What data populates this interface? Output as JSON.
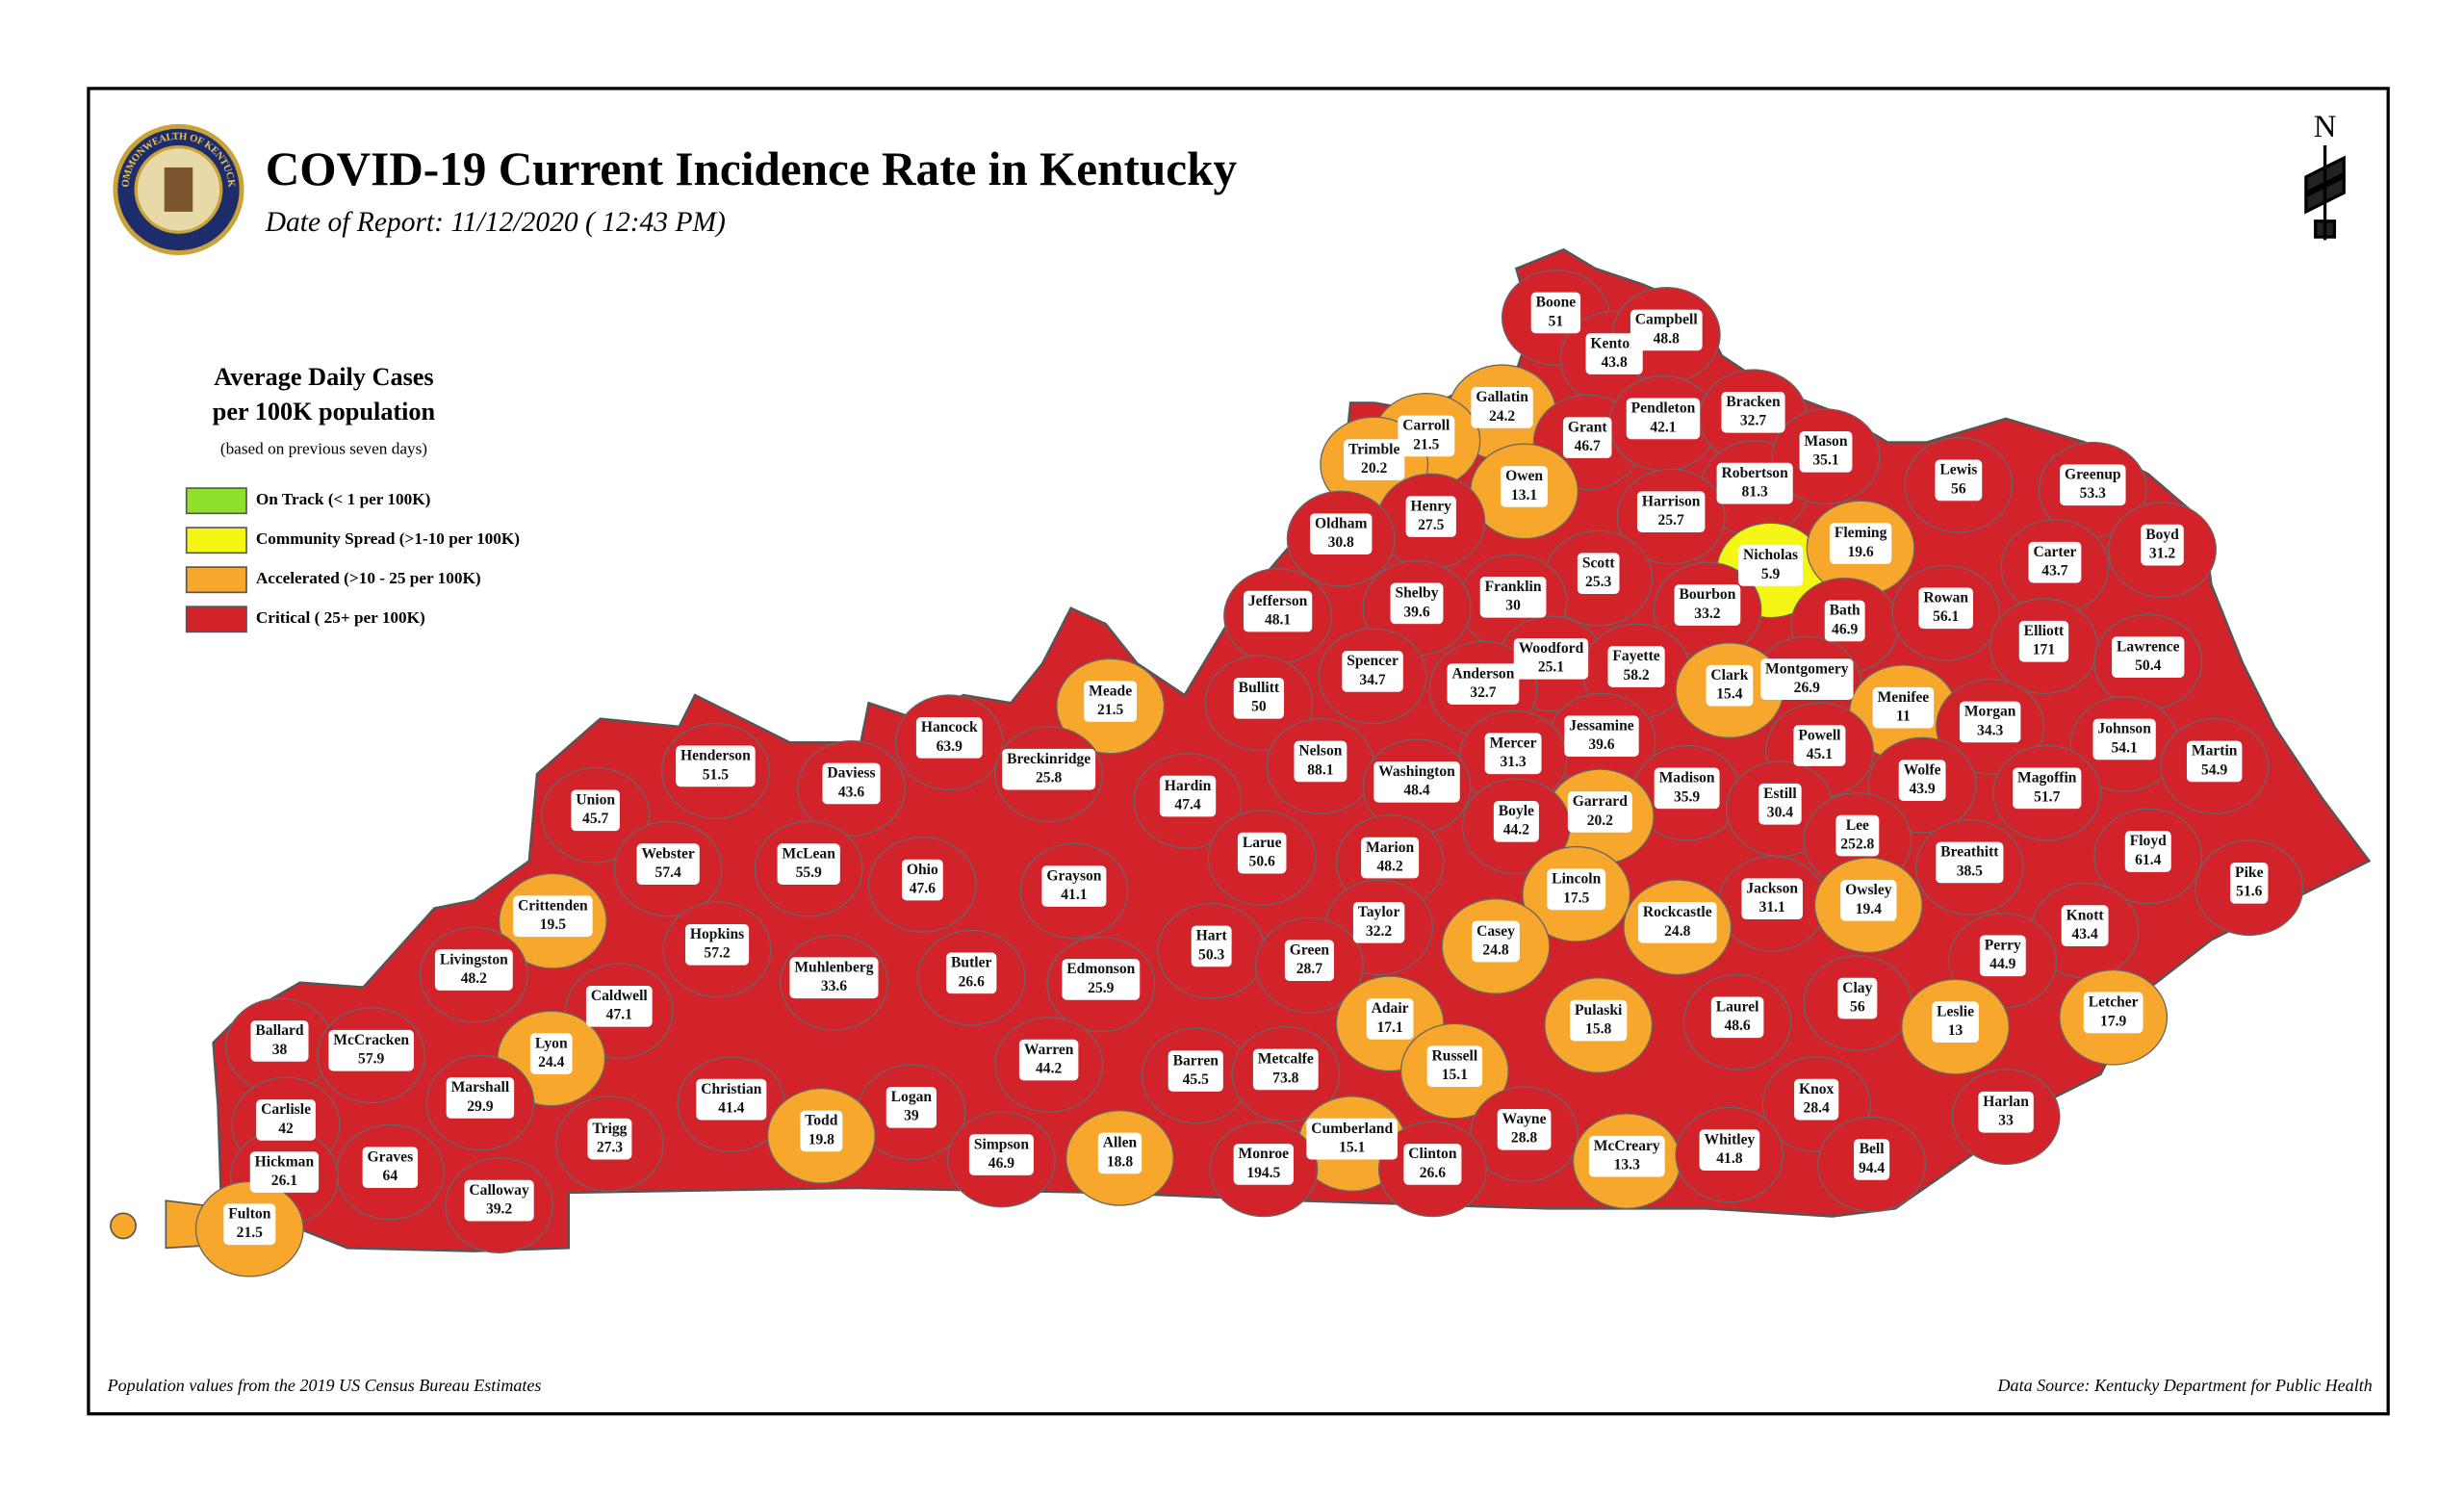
{
  "header": {
    "title": "COVID-19 Current Incidence Rate in Kentucky",
    "subtitle": "Date of Report: 11/12/2020 ( 12:43 PM)",
    "seal_text": "COMMONWEALTH OF KENTUCKY",
    "north": "N"
  },
  "legend": {
    "title": [
      "Average Daily Cases",
      "per 100K population"
    ],
    "note": "(based on previous seven days)",
    "items": [
      {
        "label": "On Track (< 1 per 100K)",
        "color": "#8ee02a"
      },
      {
        "label": "Community Spread (>1-10 per 100K)",
        "color": "#f6f614"
      },
      {
        "label": "Accelerated (>10 - 25 per 100K)",
        "color": "#f7a72b"
      },
      {
        "label": "Critical ( 25+ per 100K)",
        "color": "#d2232a"
      }
    ]
  },
  "counties": [
    {
      "name": "Boone",
      "value": 51,
      "color": "#d2232a"
    },
    {
      "name": "Kenton",
      "value": 43.8,
      "color": "#d2232a"
    },
    {
      "name": "Campbell",
      "value": 48.8,
      "color": "#d2232a"
    },
    {
      "name": "Gallatin",
      "value": 24.2,
      "color": "#f7a72b"
    },
    {
      "name": "Carroll",
      "value": 21.5,
      "color": "#f7a72b"
    },
    {
      "name": "Trimble",
      "value": 20.2,
      "color": "#f7a72b"
    },
    {
      "name": "Grant",
      "value": 46.7,
      "color": "#d2232a"
    },
    {
      "name": "Pendleton",
      "value": 42.1,
      "color": "#d2232a"
    },
    {
      "name": "Bracken",
      "value": 32.7,
      "color": "#d2232a"
    },
    {
      "name": "Owen",
      "value": 13.1,
      "color": "#f7a72b"
    },
    {
      "name": "Robertson",
      "value": 81.3,
      "color": "#d2232a"
    },
    {
      "name": "Mason",
      "value": 35.1,
      "color": "#d2232a"
    },
    {
      "name": "Lewis",
      "value": 56,
      "color": "#d2232a"
    },
    {
      "name": "Greenup",
      "value": 53.3,
      "color": "#d2232a"
    },
    {
      "name": "Henry",
      "value": 27.5,
      "color": "#d2232a"
    },
    {
      "name": "Oldham",
      "value": 30.8,
      "color": "#d2232a"
    },
    {
      "name": "Harrison",
      "value": 25.7,
      "color": "#d2232a"
    },
    {
      "name": "Nicholas",
      "value": 5.9,
      "color": "#f6f614"
    },
    {
      "name": "Fleming",
      "value": 19.6,
      "color": "#f7a72b"
    },
    {
      "name": "Boyd",
      "value": 31.2,
      "color": "#d2232a"
    },
    {
      "name": "Carter",
      "value": 43.7,
      "color": "#d2232a"
    },
    {
      "name": "Scott",
      "value": 25.3,
      "color": "#d2232a"
    },
    {
      "name": "Franklin",
      "value": 30,
      "color": "#d2232a"
    },
    {
      "name": "Shelby",
      "value": 39.6,
      "color": "#d2232a"
    },
    {
      "name": "Jefferson",
      "value": 48.1,
      "color": "#d2232a"
    },
    {
      "name": "Bourbon",
      "value": 33.2,
      "color": "#d2232a"
    },
    {
      "name": "Bath",
      "value": 46.9,
      "color": "#d2232a"
    },
    {
      "name": "Rowan",
      "value": 56.1,
      "color": "#d2232a"
    },
    {
      "name": "Elliott",
      "value": 171,
      "color": "#d2232a"
    },
    {
      "name": "Lawrence",
      "value": 50.4,
      "color": "#d2232a"
    },
    {
      "name": "Woodford",
      "value": 25.1,
      "color": "#d2232a"
    },
    {
      "name": "Fayette",
      "value": 58.2,
      "color": "#d2232a"
    },
    {
      "name": "Spencer",
      "value": 34.7,
      "color": "#d2232a"
    },
    {
      "name": "Anderson",
      "value": 32.7,
      "color": "#d2232a"
    },
    {
      "name": "Montgomery",
      "value": 26.9,
      "color": "#d2232a"
    },
    {
      "name": "Clark",
      "value": 15.4,
      "color": "#f7a72b"
    },
    {
      "name": "Menifee",
      "value": 11,
      "color": "#f7a72b"
    },
    {
      "name": "Bullitt",
      "value": 50,
      "color": "#d2232a"
    },
    {
      "name": "Meade",
      "value": 21.5,
      "color": "#f7a72b"
    },
    {
      "name": "Morgan",
      "value": 34.3,
      "color": "#d2232a"
    },
    {
      "name": "Johnson",
      "value": 54.1,
      "color": "#d2232a"
    },
    {
      "name": "Martin",
      "value": 54.9,
      "color": "#d2232a"
    },
    {
      "name": "Hancock",
      "value": 63.9,
      "color": "#d2232a"
    },
    {
      "name": "Jessamine",
      "value": 39.6,
      "color": "#d2232a"
    },
    {
      "name": "Mercer",
      "value": 31.3,
      "color": "#d2232a"
    },
    {
      "name": "Powell",
      "value": 45.1,
      "color": "#d2232a"
    },
    {
      "name": "Nelson",
      "value": 88.1,
      "color": "#d2232a"
    },
    {
      "name": "Henderson",
      "value": 51.5,
      "color": "#d2232a"
    },
    {
      "name": "Breckinridge",
      "value": 25.8,
      "color": "#d2232a"
    },
    {
      "name": "Washington",
      "value": 48.4,
      "color": "#d2232a"
    },
    {
      "name": "Madison",
      "value": 35.9,
      "color": "#d2232a"
    },
    {
      "name": "Wolfe",
      "value": 43.9,
      "color": "#d2232a"
    },
    {
      "name": "Magoffin",
      "value": 51.7,
      "color": "#d2232a"
    },
    {
      "name": "Daviess",
      "value": 43.6,
      "color": "#d2232a"
    },
    {
      "name": "Hardin",
      "value": 47.4,
      "color": "#d2232a"
    },
    {
      "name": "Estill",
      "value": 30.4,
      "color": "#d2232a"
    },
    {
      "name": "Garrard",
      "value": 20.2,
      "color": "#f7a72b"
    },
    {
      "name": "Union",
      "value": 45.7,
      "color": "#d2232a"
    },
    {
      "name": "Boyle",
      "value": 44.2,
      "color": "#d2232a"
    },
    {
      "name": "Lee",
      "value": 252.8,
      "color": "#d2232a"
    },
    {
      "name": "Floyd",
      "value": 61.4,
      "color": "#d2232a"
    },
    {
      "name": "Breathitt",
      "value": 38.5,
      "color": "#d2232a"
    },
    {
      "name": "Webster",
      "value": 57.4,
      "color": "#d2232a"
    },
    {
      "name": "McLean",
      "value": 55.9,
      "color": "#d2232a"
    },
    {
      "name": "Ohio",
      "value": 47.6,
      "color": "#d2232a"
    },
    {
      "name": "Marion",
      "value": 48.2,
      "color": "#d2232a"
    },
    {
      "name": "Larue",
      "value": 50.6,
      "color": "#d2232a"
    },
    {
      "name": "Grayson",
      "value": 41.1,
      "color": "#d2232a"
    },
    {
      "name": "Lincoln",
      "value": 17.5,
      "color": "#f7a72b"
    },
    {
      "name": "Jackson",
      "value": 31.1,
      "color": "#d2232a"
    },
    {
      "name": "Owsley",
      "value": 19.4,
      "color": "#f7a72b"
    },
    {
      "name": "Pike",
      "value": 51.6,
      "color": "#d2232a"
    },
    {
      "name": "Crittenden",
      "value": 19.5,
      "color": "#f7a72b"
    },
    {
      "name": "Taylor",
      "value": 32.2,
      "color": "#d2232a"
    },
    {
      "name": "Rockcastle",
      "value": 24.8,
      "color": "#f7a72b"
    },
    {
      "name": "Casey",
      "value": 24.8,
      "color": "#f7a72b"
    },
    {
      "name": "Knott",
      "value": 43.4,
      "color": "#d2232a"
    },
    {
      "name": "Hopkins",
      "value": 57.2,
      "color": "#d2232a"
    },
    {
      "name": "Hart",
      "value": 50.3,
      "color": "#d2232a"
    },
    {
      "name": "Perry",
      "value": 44.9,
      "color": "#d2232a"
    },
    {
      "name": "Green",
      "value": 28.7,
      "color": "#d2232a"
    },
    {
      "name": "Livingston",
      "value": 48.2,
      "color": "#d2232a"
    },
    {
      "name": "Muhlenberg",
      "value": 33.6,
      "color": "#d2232a"
    },
    {
      "name": "Butler",
      "value": 26.6,
      "color": "#d2232a"
    },
    {
      "name": "Edmonson",
      "value": 25.9,
      "color": "#d2232a"
    },
    {
      "name": "Caldwell",
      "value": 47.1,
      "color": "#d2232a"
    },
    {
      "name": "Clay",
      "value": 56,
      "color": "#d2232a"
    },
    {
      "name": "Leslie",
      "value": 13,
      "color": "#f7a72b"
    },
    {
      "name": "Letcher",
      "value": 17.9,
      "color": "#f7a72b"
    },
    {
      "name": "Adair",
      "value": 17.1,
      "color": "#f7a72b"
    },
    {
      "name": "Pulaski",
      "value": 15.8,
      "color": "#f7a72b"
    },
    {
      "name": "Laurel",
      "value": 48.6,
      "color": "#d2232a"
    },
    {
      "name": "Ballard",
      "value": 38,
      "color": "#d2232a"
    },
    {
      "name": "McCracken",
      "value": 57.9,
      "color": "#d2232a"
    },
    {
      "name": "Lyon",
      "value": 24.4,
      "color": "#f7a72b"
    },
    {
      "name": "Warren",
      "value": 44.2,
      "color": "#d2232a"
    },
    {
      "name": "Russell",
      "value": 15.1,
      "color": "#f7a72b"
    },
    {
      "name": "Barren",
      "value": 45.5,
      "color": "#d2232a"
    },
    {
      "name": "Metcalfe",
      "value": 73.8,
      "color": "#d2232a"
    },
    {
      "name": "Marshall",
      "value": 29.9,
      "color": "#d2232a"
    },
    {
      "name": "Christian",
      "value": 41.4,
      "color": "#d2232a"
    },
    {
      "name": "Logan",
      "value": 39,
      "color": "#d2232a"
    },
    {
      "name": "Knox",
      "value": 28.4,
      "color": "#d2232a"
    },
    {
      "name": "Harlan",
      "value": 33,
      "color": "#d2232a"
    },
    {
      "name": "Carlisle",
      "value": 42,
      "color": "#d2232a"
    },
    {
      "name": "Todd",
      "value": 19.8,
      "color": "#f7a72b"
    },
    {
      "name": "Wayne",
      "value": 28.8,
      "color": "#d2232a"
    },
    {
      "name": "Trigg",
      "value": 27.3,
      "color": "#d2232a"
    },
    {
      "name": "Cumberland",
      "value": 15.1,
      "color": "#f7a72b"
    },
    {
      "name": "Allen",
      "value": 18.8,
      "color": "#f7a72b"
    },
    {
      "name": "Simpson",
      "value": 46.9,
      "color": "#d2232a"
    },
    {
      "name": "Monroe",
      "value": 194.5,
      "color": "#d2232a"
    },
    {
      "name": "Clinton",
      "value": 26.6,
      "color": "#d2232a"
    },
    {
      "name": "McCreary",
      "value": 13.3,
      "color": "#f7a72b"
    },
    {
      "name": "Whitley",
      "value": 41.8,
      "color": "#d2232a"
    },
    {
      "name": "Graves",
      "value": 64,
      "color": "#d2232a"
    },
    {
      "name": "Bell",
      "value": 94.4,
      "color": "#d2232a"
    },
    {
      "name": "Hickman",
      "value": 26.1,
      "color": "#d2232a"
    },
    {
      "name": "Calloway",
      "value": 39.2,
      "color": "#d2232a"
    },
    {
      "name": "Fulton",
      "value": 21.5,
      "color": "#f7a72b"
    }
  ],
  "footer": {
    "left": "Population values from the 2019 US Census Bureau Estimates",
    "right": "Data Source: Kentucky Department for Public Health"
  }
}
